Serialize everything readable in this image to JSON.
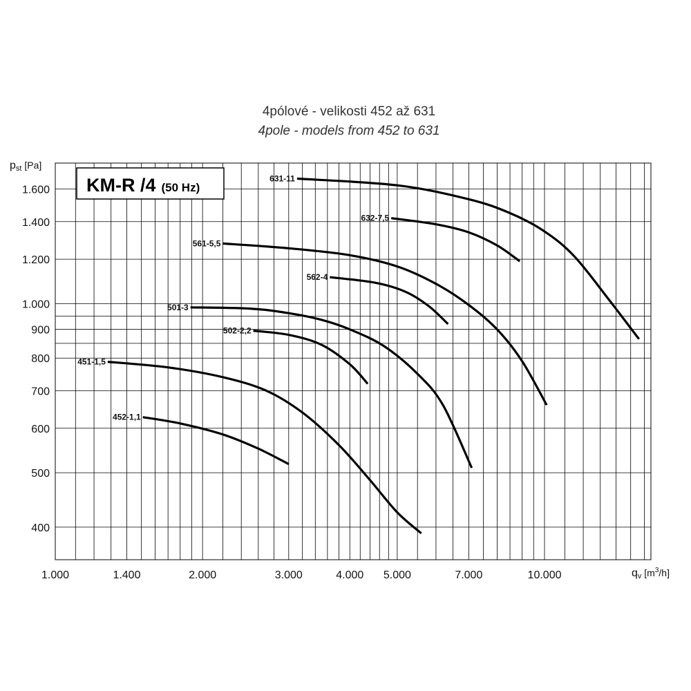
{
  "chart_data": {
    "type": "line",
    "title": "4pólové - velikosti 452 až 631",
    "subtitle": "4pole - models from 452 to 631",
    "badge": {
      "main": "KM-R /4",
      "sub": "(50 Hz)"
    },
    "x_scale": "log",
    "y_scale": "log",
    "xlim": [
      1000,
      16500
    ],
    "ylim": [
      350,
      1780
    ],
    "x_axis_label": {
      "symbol": "q",
      "sub": "v",
      "unit_pre": " [m",
      "unit_sup": "3",
      "unit_post": "/h]"
    },
    "y_axis_label": {
      "symbol": "p",
      "sub": "st",
      "unit": " [Pa]"
    },
    "x_tick_labels": [
      {
        "value": 1000,
        "label": "1.000"
      },
      {
        "value": 1400,
        "label": "1.400"
      },
      {
        "value": 2000,
        "label": "2.000"
      },
      {
        "value": 3000,
        "label": "3.000"
      },
      {
        "value": 4000,
        "label": "4.000"
      },
      {
        "value": 5000,
        "label": "5.000"
      },
      {
        "value": 7000,
        "label": "7.000"
      },
      {
        "value": 10000,
        "label": "10.000"
      }
    ],
    "y_tick_labels": [
      {
        "value": 400,
        "label": "400"
      },
      {
        "value": 500,
        "label": "500"
      },
      {
        "value": 600,
        "label": "600"
      },
      {
        "value": 700,
        "label": "700"
      },
      {
        "value": 800,
        "label": "800"
      },
      {
        "value": 900,
        "label": "900"
      },
      {
        "value": 1000,
        "label": "1.000"
      },
      {
        "value": 1200,
        "label": "1.200"
      },
      {
        "value": 1400,
        "label": "1.400"
      },
      {
        "value": 1600,
        "label": "1.600"
      }
    ],
    "x_grid": [
      1000,
      1100,
      1200,
      1300,
      1400,
      1500,
      1600,
      1700,
      1800,
      1900,
      2000,
      2200,
      2400,
      2600,
      2800,
      3000,
      3200,
      3400,
      3600,
      3800,
      4000,
      4200,
      4400,
      4600,
      4800,
      5000,
      5500,
      6000,
      6500,
      7000,
      7500,
      8000,
      8500,
      9000,
      9500,
      10000,
      11000,
      12000,
      13000,
      14000,
      15000,
      16000
    ],
    "y_grid": [
      400,
      500,
      600,
      700,
      800,
      850,
      900,
      950,
      1000,
      1200,
      1400,
      1600
    ],
    "grid": true,
    "series": [
      {
        "name": "631-11",
        "x": [
          3120,
          5000,
          7000,
          8500,
          10000,
          11500,
          13500,
          15600
        ],
        "y": [
          1670,
          1625,
          1535,
          1450,
          1345,
          1215,
          1020,
          865
        ]
      },
      {
        "name": "632-7,5",
        "x": [
          4860,
          6000,
          7000,
          8000,
          8900
        ],
        "y": [
          1420,
          1385,
          1340,
          1270,
          1190
        ]
      },
      {
        "name": "561-5,5",
        "x": [
          2200,
          3000,
          4000,
          5000,
          6000,
          7000,
          8000,
          9000,
          10100
        ],
        "y": [
          1280,
          1255,
          1220,
          1165,
          1085,
          995,
          900,
          790,
          660
        ]
      },
      {
        "name": "562-4",
        "x": [
          3640,
          4500,
          5200,
          5800,
          6350
        ],
        "y": [
          1115,
          1090,
          1050,
          990,
          920
        ]
      },
      {
        "name": "501-3",
        "x": [
          1890,
          2500,
          3000,
          3500,
          4000,
          4700,
          5500,
          6200,
          7100
        ],
        "y": [
          985,
          980,
          962,
          936,
          900,
          840,
          750,
          660,
          510
        ]
      },
      {
        "name": "502-2,2",
        "x": [
          2540,
          3000,
          3500,
          4000,
          4350
        ],
        "y": [
          895,
          880,
          845,
          780,
          720
        ]
      },
      {
        "name": "451-1,5",
        "x": [
          1280,
          1700,
          2200,
          2700,
          3200,
          3800,
          4400,
          5000,
          5600
        ],
        "y": [
          788,
          770,
          740,
          700,
          640,
          560,
          485,
          425,
          390
        ]
      },
      {
        "name": "452-1,1",
        "x": [
          1510,
          1800,
          2200,
          2600,
          3000
        ],
        "y": [
          628,
          612,
          585,
          552,
          518
        ]
      }
    ]
  }
}
